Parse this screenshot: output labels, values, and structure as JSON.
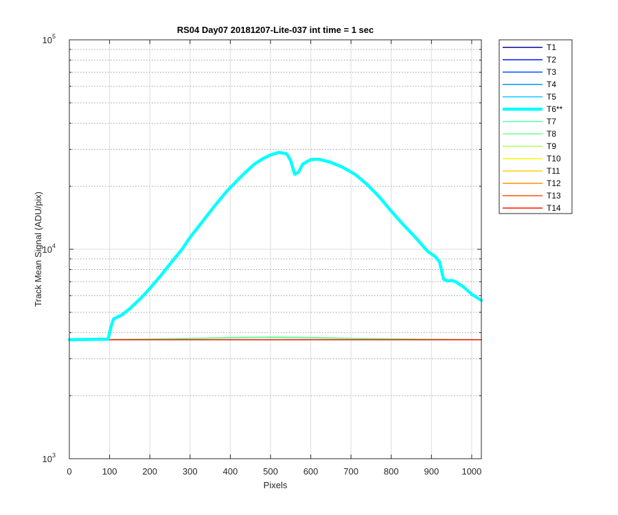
{
  "chart_data": {
    "type": "line",
    "title": "RS04 Day07 20181207-Lite-037 int time = 1 sec",
    "xlabel": "Pixels",
    "ylabel": "Track Mean Signal (ADU/pix)",
    "xlim": [
      0,
      1024
    ],
    "ylim": [
      1000,
      100000
    ],
    "yscale": "log",
    "grid": true,
    "legend_position": "outside-top-right",
    "x_ticks": [
      0,
      100,
      200,
      300,
      400,
      500,
      600,
      700,
      800,
      900,
      1000
    ],
    "x_tick_labels": [
      "0",
      "100",
      "200",
      "300",
      "400",
      "500",
      "600",
      "700",
      "800",
      "900",
      "1000"
    ],
    "y_ticks": [
      {
        "value": 1000,
        "base": "10",
        "exp": "3"
      },
      {
        "value": 10000,
        "base": "10",
        "exp": "4"
      },
      {
        "value": 100000,
        "base": "10",
        "exp": "5"
      }
    ],
    "series": [
      {
        "name": "T1",
        "color": "#00008f",
        "width": 1.5,
        "baseline": true
      },
      {
        "name": "T2",
        "color": "#0010ff",
        "width": 1.5,
        "baseline": true
      },
      {
        "name": "T3",
        "color": "#0050ff",
        "width": 1.5,
        "baseline": true
      },
      {
        "name": "T4",
        "color": "#0090ff",
        "width": 1.5,
        "baseline": true
      },
      {
        "name": "T5",
        "color": "#00cfff",
        "width": 1.5,
        "baseline": true
      },
      {
        "name": "T6**",
        "color": "#00ffff",
        "width": 4.5,
        "x": [
          0,
          96,
          104,
          110,
          130,
          150,
          180,
          200,
          230,
          250,
          280,
          300,
          330,
          360,
          390,
          420,
          440,
          460,
          480,
          500,
          520,
          540,
          550,
          560,
          570,
          580,
          600,
          620,
          650,
          680,
          710,
          740,
          770,
          800,
          830,
          860,
          890,
          910,
          920,
          930,
          940,
          950,
          960,
          980,
          1000,
          1024
        ],
        "values": [
          3700,
          3720,
          4300,
          4650,
          4850,
          5200,
          5900,
          6500,
          7600,
          8500,
          10000,
          11400,
          13500,
          16000,
          18800,
          21600,
          23500,
          25500,
          27000,
          28200,
          29000,
          28600,
          26500,
          22800,
          23400,
          25500,
          26800,
          26900,
          26000,
          24600,
          22800,
          20400,
          17800,
          15200,
          13100,
          11400,
          9800,
          9200,
          8700,
          7200,
          7050,
          7100,
          7000,
          6600,
          6100,
          5700
        ]
      },
      {
        "name": "T7",
        "color": "#50ffaf",
        "width": 1.5,
        "x": [
          0,
          100,
          200,
          300,
          400,
          500,
          600,
          700,
          800,
          900,
          1000,
          1024
        ],
        "values": [
          3700,
          3710,
          3730,
          3760,
          3790,
          3810,
          3790,
          3760,
          3740,
          3720,
          3705,
          3700
        ]
      },
      {
        "name": "T8",
        "color": "#70ff8f",
        "width": 1.5,
        "x": [
          0,
          100,
          200,
          300,
          400,
          500,
          600,
          700,
          800,
          900,
          1000,
          1024
        ],
        "values": [
          3700,
          3705,
          3720,
          3745,
          3770,
          3785,
          3770,
          3745,
          3730,
          3715,
          3702,
          3700
        ]
      },
      {
        "name": "T9",
        "color": "#afff50",
        "width": 1.5,
        "baseline": true
      },
      {
        "name": "T10",
        "color": "#ffff00",
        "width": 1.5,
        "baseline": true
      },
      {
        "name": "T11",
        "color": "#ffcf00",
        "width": 1.5,
        "baseline": true
      },
      {
        "name": "T12",
        "color": "#ff9000",
        "width": 1.5,
        "baseline": true
      },
      {
        "name": "T13",
        "color": "#ff5000",
        "width": 1.5,
        "baseline": true
      },
      {
        "name": "T14",
        "color": "#ff1000",
        "width": 1.5,
        "baseline": true
      }
    ],
    "baseline_values": {
      "x": [
        0,
        1024
      ],
      "values": [
        3700,
        3700
      ]
    }
  }
}
